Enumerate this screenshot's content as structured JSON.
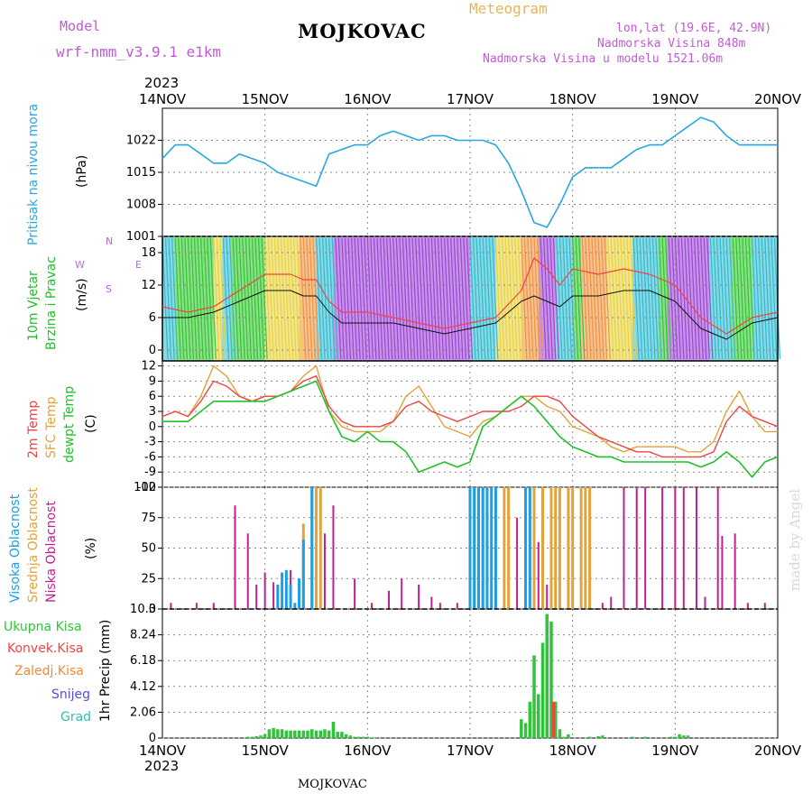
{
  "header": {
    "model_label": "Model",
    "model_name": "wrf-nmm_v3.9.1 e1km",
    "station": "MOJKOVAC",
    "product": "Meteogram",
    "coords": "lon,lat (19.6E, 42.9N)",
    "altitude": "Nadmorska Visina 848m",
    "model_altitude": "Nadmorska Visina u modelu 1521.06m",
    "year": "2023"
  },
  "footer": {
    "station": "MOJKOVAC",
    "watermark": "made by Angel"
  },
  "x_axis": {
    "ticks": [
      "14NOV",
      "15NOV",
      "16NOV",
      "17NOV",
      "18NOV",
      "19NOV",
      "20NOV"
    ]
  },
  "panels": {
    "pressure": {
      "title": "Pritisak na nivou mora",
      "unit": "(hPa)",
      "ticks": [
        "1001",
        "1008",
        "1015",
        "1022"
      ],
      "color": "#27a8e0"
    },
    "wind": {
      "title_line1": "10m Vjetar",
      "title_line2": "Brzina i Pravac",
      "unit": "(m/s)",
      "ticks": [
        "0",
        "6",
        "12",
        "18"
      ],
      "compass": {
        "n": "N",
        "e": "E",
        "w": "W",
        "s": "S"
      }
    },
    "temperature": {
      "label_2m": "2m Temp",
      "label_sfc": "SFC Temp",
      "label_dew": "dewpt Temp",
      "unit": "(C)",
      "ticks": [
        "-12",
        "-9",
        "-6",
        "-3",
        "0",
        "3",
        "6",
        "9",
        "12"
      ]
    },
    "clouds": {
      "label_high": "Visoka Oblacnost",
      "label_mid": "Srednja Oblacnost",
      "label_low": "Niska Oblacnost",
      "unit": "(%)",
      "ticks": [
        "0",
        "25",
        "50",
        "75",
        "100"
      ]
    },
    "precip": {
      "label_total": "Ukupna Kisa",
      "label_conv": "Konvek.Kisa",
      "label_frz": "Zaledj.Kisa",
      "label_snow": "Snijeg",
      "label_hail": "Grad",
      "unit": "1hr Precip (mm)",
      "ticks": [
        "0",
        "2.06",
        "4.12",
        "6.18",
        "8.24",
        "10.3"
      ]
    }
  },
  "colors": {
    "pressure": "#27a8e0",
    "t2m": "#ef4444",
    "tsfc": "#e3a33b",
    "dew": "#22c02a",
    "cloud_high": "#1d9ee6",
    "cloud_mid": "#e3a33b",
    "cloud_low": "#c0208f",
    "precip_total": "#2fc43a",
    "precip_conv": "#ef4444",
    "precip_frz": "#f08a3a",
    "precip_snow": "#5050dd",
    "precip_hail": "#2bbfb3",
    "wind_purple": "#9a3fd6",
    "wind_green": "#2ec42b",
    "wind_yellow": "#e8d23a",
    "wind_orange": "#f0913a",
    "wind_cyan": "#2ab9cf"
  },
  "chart_data": [
    {
      "type": "line",
      "title": "",
      "ylabel": "Pritisak na nivou mora (hPa)",
      "ylim": [
        1001,
        1029
      ],
      "x_unit": "hours from 14NOV 00UTC",
      "x": [
        0,
        3,
        6,
        9,
        12,
        15,
        18,
        21,
        24,
        27,
        30,
        33,
        36,
        39,
        42,
        45,
        48,
        51,
        54,
        57,
        60,
        63,
        66,
        69,
        72,
        75,
        78,
        81,
        84,
        87,
        90,
        93,
        96,
        99,
        102,
        105,
        108,
        111,
        114,
        117,
        120,
        123,
        126,
        129,
        132,
        135,
        138,
        141,
        144
      ],
      "series": [
        {
          "name": "Pritisak na nivou mora",
          "values": [
            1018,
            1021,
            1021,
            1019,
            1017,
            1017,
            1019,
            1018,
            1017,
            1015,
            1014,
            1013,
            1012,
            1019,
            1020,
            1021,
            1021,
            1023,
            1024,
            1023,
            1022,
            1023,
            1023,
            1022,
            1022,
            1022,
            1021,
            1017,
            1011,
            1004,
            1003,
            1008,
            1014,
            1016,
            1016,
            1016,
            1018,
            1020,
            1021,
            1021,
            1023,
            1025,
            1027,
            1026,
            1023,
            1021,
            1021,
            1021,
            1021
          ]
        }
      ]
    },
    {
      "type": "line",
      "title": "",
      "ylabel": "10m Vjetar Brzina i Pravac (m/s)",
      "ylim": [
        -2,
        21
      ],
      "x_unit": "hours from 14NOV 00UTC",
      "x": [
        0,
        6,
        12,
        18,
        24,
        30,
        33,
        36,
        39,
        42,
        48,
        54,
        60,
        66,
        72,
        78,
        84,
        87,
        90,
        93,
        96,
        102,
        108,
        114,
        120,
        126,
        132,
        138,
        144
      ],
      "series": [
        {
          "name": "speed",
          "values": [
            6,
            6,
            7,
            9,
            11,
            11,
            10,
            10,
            7,
            5,
            5,
            5,
            4,
            3,
            4,
            5,
            9,
            10,
            9,
            8,
            10,
            10,
            11,
            11,
            9,
            4,
            2,
            5,
            6
          ]
        },
        {
          "name": "gust",
          "values": [
            8,
            7,
            8,
            11,
            14,
            14,
            13,
            13,
            9,
            7,
            7,
            6,
            5,
            4,
            5,
            6,
            11,
            17,
            15,
            12,
            15,
            14,
            15,
            14,
            12,
            6,
            3,
            6,
            7
          ]
        }
      ]
    },
    {
      "type": "line",
      "title": "",
      "ylabel": "(C)",
      "ylim": [
        -12,
        13
      ],
      "x_unit": "hours from 14NOV 00UTC",
      "x": [
        0,
        3,
        6,
        9,
        12,
        15,
        18,
        21,
        24,
        27,
        30,
        33,
        36,
        39,
        42,
        45,
        48,
        51,
        54,
        57,
        60,
        63,
        66,
        69,
        72,
        75,
        78,
        81,
        84,
        87,
        90,
        93,
        96,
        99,
        102,
        105,
        108,
        111,
        114,
        117,
        120,
        123,
        126,
        129,
        132,
        135,
        138,
        141,
        144
      ],
      "series": [
        {
          "name": "2m Temp",
          "values": [
            2,
            3,
            2,
            5,
            9,
            8,
            6,
            5,
            6,
            6,
            7,
            9,
            10,
            4,
            1,
            0,
            0,
            0,
            1,
            4,
            5,
            3,
            2,
            1,
            2,
            3,
            3,
            3,
            4,
            6,
            6,
            5,
            2,
            0,
            -2,
            -3,
            -4,
            -5,
            -5,
            -6,
            -6,
            -6,
            -6,
            -5,
            1,
            4,
            2,
            1,
            0
          ]
        },
        {
          "name": "SFC Temp",
          "values": [
            2,
            3,
            2,
            6,
            12,
            10,
            6,
            5,
            6,
            6,
            7,
            10,
            12,
            3,
            0,
            -1,
            -1,
            -1,
            1,
            6,
            8,
            4,
            0,
            -1,
            -2,
            1,
            2,
            4,
            6,
            6,
            4,
            3,
            0,
            -1,
            -2,
            -4,
            -5,
            -4,
            -4,
            -4,
            -4,
            -5,
            -5,
            -3,
            3,
            7,
            2,
            -1,
            -1
          ]
        },
        {
          "name": "dewpt Temp",
          "values": [
            1,
            1,
            1,
            3,
            5,
            5,
            5,
            5,
            5,
            6,
            7,
            8,
            9,
            3,
            -2,
            -3,
            -1,
            -3,
            -3,
            -5,
            -9,
            -8,
            -7,
            -8,
            -7,
            0,
            2,
            4,
            6,
            4,
            1,
            -2,
            -4,
            -5,
            -6,
            -6,
            -7,
            -7,
            -7,
            -7,
            -7,
            -7,
            -8,
            -7,
            -5,
            -7,
            -10,
            -7,
            -6
          ]
        }
      ]
    },
    {
      "type": "bar",
      "title": "",
      "ylabel": "(%)",
      "ylim": [
        0,
        100
      ],
      "x_unit": "hours from 14NOV 00UTC",
      "series": [
        {
          "name": "Niska Oblacnost",
          "x": [
            2,
            8,
            12,
            17,
            20,
            22,
            24,
            26,
            28,
            30,
            35,
            36,
            38,
            40,
            45,
            49,
            53,
            56,
            60,
            63,
            65,
            69,
            72,
            75,
            80,
            83,
            85,
            86,
            88,
            90,
            92,
            95,
            98,
            100,
            103,
            105,
            108,
            111,
            113,
            117,
            120,
            122,
            125,
            127,
            130,
            131,
            134,
            137,
            141
          ],
          "values": [
            5,
            5,
            5,
            85,
            62,
            20,
            30,
            22,
            20,
            32,
            55,
            100,
            62,
            85,
            25,
            5,
            15,
            25,
            20,
            10,
            5,
            5,
            75,
            100,
            25,
            75,
            100,
            100,
            55,
            20,
            100,
            100,
            100,
            20,
            5,
            10,
            100,
            100,
            100,
            100,
            100,
            100,
            100,
            10,
            100,
            60,
            62,
            5,
            5
          ]
        },
        {
          "name": "Srednja Oblacnost",
          "x": [
            33,
            35,
            36,
            37,
            72,
            73,
            74,
            75,
            76,
            78,
            80,
            81,
            85,
            86,
            87,
            89,
            91,
            92,
            93,
            95,
            96,
            98,
            99,
            100
          ],
          "values": [
            70,
            100,
            100,
            100,
            100,
            100,
            100,
            100,
            100,
            100,
            100,
            100,
            100,
            100,
            100,
            100,
            100,
            100,
            100,
            100,
            100,
            100,
            100,
            100
          ]
        },
        {
          "name": "Visoka Oblacnost",
          "x": [
            27,
            28,
            29,
            30,
            31,
            32,
            33,
            35,
            72,
            73,
            74,
            75,
            76,
            77,
            78,
            85,
            86
          ],
          "values": [
            20,
            30,
            32,
            20,
            5,
            25,
            57,
            100,
            100,
            100,
            100,
            100,
            100,
            100,
            100,
            100,
            100
          ]
        }
      ]
    },
    {
      "type": "bar",
      "title": "",
      "ylabel": "1hr Precip (mm)",
      "ylim": [
        0,
        10.3
      ],
      "x_unit": "hours from 14NOV 00UTC",
      "series": [
        {
          "name": "Ukupna Kisa",
          "x": [
            20,
            21,
            22,
            23,
            24,
            25,
            26,
            27,
            28,
            29,
            30,
            31,
            32,
            33,
            34,
            35,
            36,
            37,
            38,
            39,
            40,
            41,
            42,
            43,
            44,
            45,
            46,
            47,
            48,
            49,
            50,
            84,
            85,
            86,
            87,
            88,
            89,
            90,
            91,
            92,
            93,
            94,
            95,
            100,
            102,
            103,
            110,
            113,
            119,
            120,
            121,
            122,
            123
          ],
          "values": [
            0.1,
            0.1,
            0.15,
            0.2,
            0.3,
            0.7,
            0.8,
            0.7,
            0.7,
            0.6,
            0.6,
            0.6,
            0.6,
            0.6,
            0.6,
            0.7,
            0.6,
            0.6,
            0.7,
            0.6,
            1.3,
            0.5,
            0.5,
            0.3,
            0.2,
            0.1,
            0.1,
            0.1,
            0.1,
            0.05,
            0.05,
            1.5,
            1.2,
            2.9,
            6.6,
            3.5,
            7.6,
            9.9,
            9.3,
            2.9,
            0.7,
            0.1,
            0.3,
            0.1,
            0.15,
            0.2,
            0.1,
            0.1,
            0.1,
            0.1,
            0.3,
            0.2,
            0.2
          ]
        },
        {
          "name": "Konvek.Kisa",
          "x": [
            91
          ],
          "values": [
            2.9
          ]
        }
      ]
    }
  ]
}
